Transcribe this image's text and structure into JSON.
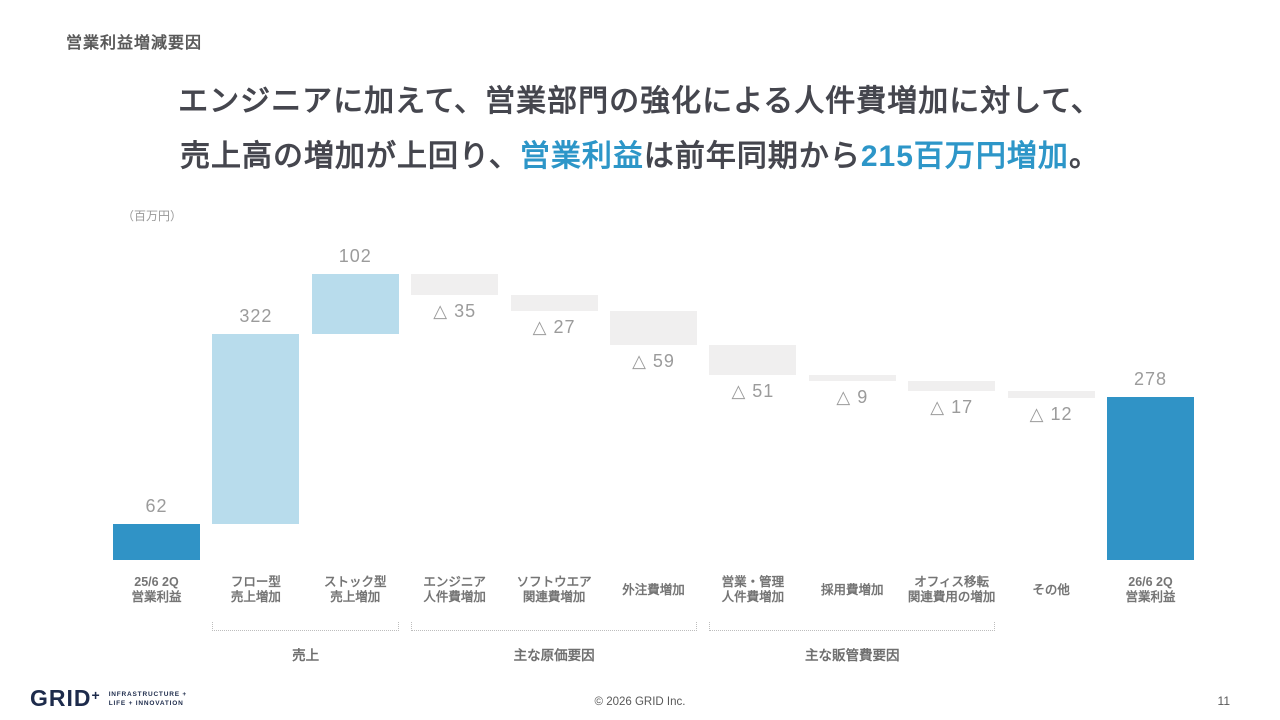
{
  "slide": {
    "title": "営業利益増減要因",
    "headline": {
      "line1": "エンジニアに加えて、営業部門の強化による人件費増加に対して、",
      "line2_part1": "売上高の増加が上回り、",
      "line2_highlight1": "営業利益",
      "line2_part2": "は前年同期から",
      "line2_highlight2": "215百万円増加",
      "line2_part3": "。"
    },
    "footer": {
      "logo_text": "GRID",
      "logo_plus": "+",
      "tagline_line1": "INFRASTRUCTURE +",
      "tagline_line2": "LIFE + INNOVATION",
      "copyright": "© 2026 GRID Inc.",
      "page_number": "11"
    }
  },
  "chart_data": {
    "type": "bar",
    "subtype": "waterfall",
    "unit_label": "（百万円）",
    "title": "営業利益増減要因",
    "xlabel": "",
    "ylabel": "百万円",
    "ylim": [
      0,
      486
    ],
    "grid": false,
    "bars": [
      {
        "label_lines": [
          "25/6 2Q",
          "営業利益"
        ],
        "value": 62,
        "display": "62",
        "kind": "total",
        "start": 0,
        "end": 62
      },
      {
        "label_lines": [
          "フロー型",
          "売上増加"
        ],
        "value": 322,
        "display": "322",
        "kind": "increase",
        "start": 62,
        "end": 384
      },
      {
        "label_lines": [
          "ストック型",
          "売上増加"
        ],
        "value": 102,
        "display": "102",
        "kind": "increase",
        "start": 384,
        "end": 486
      },
      {
        "label_lines": [
          "エンジニア",
          "人件費増加"
        ],
        "value": -35,
        "display": "△ 35",
        "kind": "decrease",
        "start": 486,
        "end": 451
      },
      {
        "label_lines": [
          "ソフトウエア",
          "関連費増加"
        ],
        "value": -27,
        "display": "△ 27",
        "kind": "decrease",
        "start": 451,
        "end": 424
      },
      {
        "label_lines": [
          "外注費増加"
        ],
        "value": -59,
        "display": "△ 59",
        "kind": "decrease",
        "start": 424,
        "end": 365
      },
      {
        "label_lines": [
          "営業・管理",
          "人件費増加"
        ],
        "value": -51,
        "display": "△ 51",
        "kind": "decrease",
        "start": 365,
        "end": 314
      },
      {
        "label_lines": [
          "採用費増加"
        ],
        "value": -9,
        "display": "△ 9",
        "kind": "decrease",
        "start": 314,
        "end": 305
      },
      {
        "label_lines": [
          "オフィス移転",
          "関連費用の増加"
        ],
        "value": -17,
        "display": "△ 17",
        "kind": "decrease",
        "start": 305,
        "end": 288
      },
      {
        "label_lines": [
          "その他"
        ],
        "value": -12,
        "display": "△ 12",
        "kind": "decrease",
        "start": 288,
        "end": 276
      },
      {
        "label_lines": [
          "26/6 2Q",
          "営業利益"
        ],
        "value": 278,
        "display": "278",
        "kind": "total",
        "start": 0,
        "end": 278
      }
    ],
    "groups": [
      {
        "label": "売上",
        "from_bar": 1,
        "to_bar": 2
      },
      {
        "label": "主な原価要因",
        "from_bar": 3,
        "to_bar": 5
      },
      {
        "label": "主な販管費要因",
        "from_bar": 6,
        "to_bar": 8
      }
    ],
    "colors": {
      "total": "#3093c6",
      "increase": "#b8dcec",
      "decrease": "#f0efef",
      "value_label": "#9b9b9b",
      "axis_label": "#757575",
      "highlight_text": "#2d96c8"
    },
    "legend": "none"
  }
}
